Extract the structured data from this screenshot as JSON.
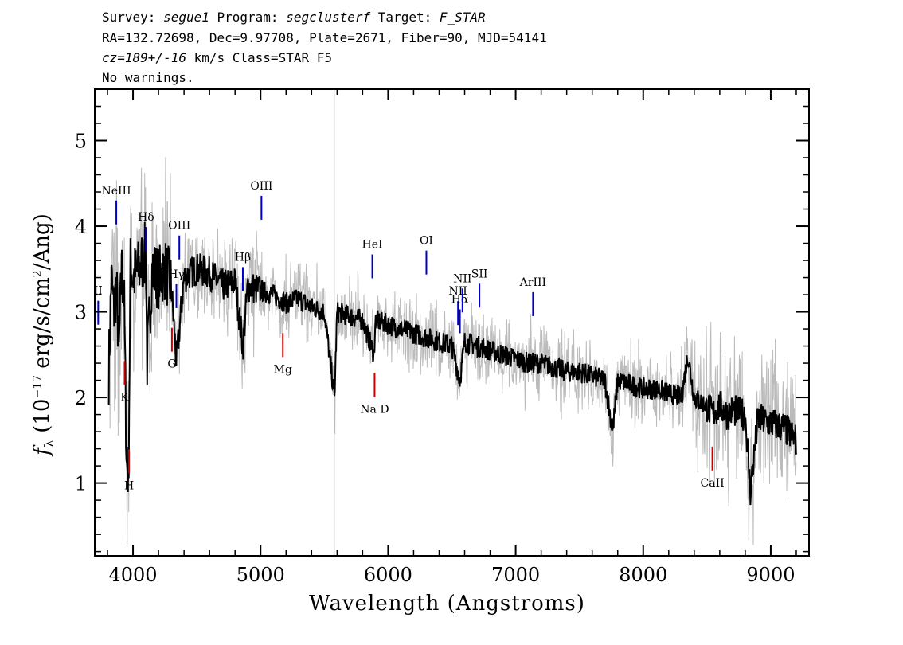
{
  "header": {
    "line1": {
      "survey_label": "Survey: ",
      "survey": "segue1",
      "program_label": " Program: ",
      "program": "segclusterf",
      "target_label": " Target: ",
      "target": "F_STAR"
    },
    "line2": "RA=132.72698, Dec=9.97708, Plate=2671, Fiber=90, MJD=54141",
    "line3": {
      "cz": "cz=189+/-16",
      "rest": " km/s Class=STAR F5"
    },
    "line4": "No warnings."
  },
  "chart_data": {
    "type": "line",
    "xlabel": "Wavelength (Angstroms)",
    "ylabel": "f_λ (10^-17 erg/s/cm^2/Ang)",
    "xlim": [
      3700,
      9300
    ],
    "ylim": [
      0.15,
      5.6
    ],
    "xticks": [
      4000,
      5000,
      6000,
      7000,
      8000,
      9000
    ],
    "yticks": [
      1,
      2,
      3,
      4,
      5
    ],
    "grid": false,
    "series": [
      {
        "role": "flux",
        "color": "#000000",
        "x": [
          3810,
          3830,
          3850,
          3870,
          3890,
          3910,
          3930,
          3950,
          3965,
          3980,
          4000,
          4050,
          4100,
          4110,
          4150,
          4200,
          4250,
          4300,
          4340,
          4400,
          4500,
          4600,
          4700,
          4800,
          4861,
          4900,
          5000,
          5100,
          5200,
          5300,
          5400,
          5500,
          5580,
          5600,
          5700,
          5800,
          5890,
          5900,
          6000,
          6100,
          6200,
          6300,
          6400,
          6500,
          6563,
          6600,
          6700,
          6800,
          6900,
          7000,
          7100,
          7200,
          7300,
          7400,
          7500,
          7600,
          7700,
          7760,
          7800,
          7900,
          8000,
          8100,
          8200,
          8300,
          8350,
          8400,
          8500,
          8542,
          8600,
          8662,
          8700,
          8800,
          8840,
          8900,
          9000,
          9100,
          9200
        ],
        "y": [
          2.3,
          3.4,
          3.0,
          3.3,
          2.5,
          3.5,
          3.2,
          1.2,
          1.1,
          3.6,
          3.4,
          3.5,
          3.7,
          2.4,
          3.5,
          3.4,
          3.5,
          3.3,
          2.4,
          3.4,
          3.5,
          3.45,
          3.3,
          3.35,
          2.6,
          3.3,
          3.25,
          3.2,
          3.1,
          3.15,
          3.05,
          3.0,
          2.0,
          3.0,
          2.95,
          2.9,
          2.5,
          2.9,
          2.85,
          2.8,
          2.75,
          2.7,
          2.65,
          2.6,
          2.2,
          2.65,
          2.6,
          2.55,
          2.5,
          2.45,
          2.4,
          2.4,
          2.35,
          2.3,
          2.3,
          2.25,
          2.2,
          1.6,
          2.2,
          2.15,
          2.1,
          2.1,
          2.05,
          2.0,
          2.5,
          2.0,
          1.9,
          1.8,
          1.9,
          1.8,
          1.85,
          1.8,
          0.9,
          1.75,
          1.7,
          1.65,
          1.5
        ]
      },
      {
        "role": "error",
        "color": "#bbbbbb"
      }
    ],
    "lines": [
      {
        "label": "NeIII",
        "wave": 3869,
        "color": "#0000cc",
        "kind": "emission"
      },
      {
        "label": "II",
        "wave": 3727,
        "color": "#0000cc",
        "kind": "emission"
      },
      {
        "label": "Hδ",
        "wave": 4102,
        "color": "#0000cc",
        "kind": "emission"
      },
      {
        "label": "Hγ",
        "wave": 4340,
        "color": "#0000cc",
        "kind": "emission"
      },
      {
        "label": "OIII",
        "wave": 4363,
        "color": "#0000cc",
        "kind": "emission"
      },
      {
        "label": "Hβ",
        "wave": 4861,
        "color": "#0000cc",
        "kind": "emission"
      },
      {
        "label": "OIII",
        "wave": 5007,
        "color": "#0000cc",
        "kind": "emission"
      },
      {
        "label": "HeI",
        "wave": 5876,
        "color": "#0000cc",
        "kind": "emission"
      },
      {
        "label": "OI",
        "wave": 6300,
        "color": "#0000cc",
        "kind": "emission"
      },
      {
        "label": "NII",
        "wave": 6548,
        "color": "#0000cc",
        "kind": "emission"
      },
      {
        "label": "Hα",
        "wave": 6563,
        "color": "#0000cc",
        "kind": "emission"
      },
      {
        "label": "NII",
        "wave": 6583,
        "color": "#0000cc",
        "kind": "emission"
      },
      {
        "label": "SII",
        "wave": 6716,
        "color": "#0000cc",
        "kind": "emission"
      },
      {
        "label": "ArIII",
        "wave": 7136,
        "color": "#0000cc",
        "kind": "emission"
      },
      {
        "label": "K",
        "wave": 3934,
        "color": "#cc0000",
        "kind": "absorption"
      },
      {
        "label": "H",
        "wave": 3969,
        "color": "#cc0000",
        "kind": "absorption"
      },
      {
        "label": "G",
        "wave": 4305,
        "color": "#cc0000",
        "kind": "absorption"
      },
      {
        "label": "Mg",
        "wave": 5175,
        "color": "#cc0000",
        "kind": "absorption"
      },
      {
        "label": "Na D",
        "wave": 5894,
        "color": "#cc0000",
        "kind": "absorption"
      },
      {
        "label": "CaII",
        "wave": 8542,
        "color": "#cc0000",
        "kind": "absorption"
      }
    ],
    "marker_line": {
      "wave": 5577,
      "color": "#bbbbbb"
    }
  }
}
